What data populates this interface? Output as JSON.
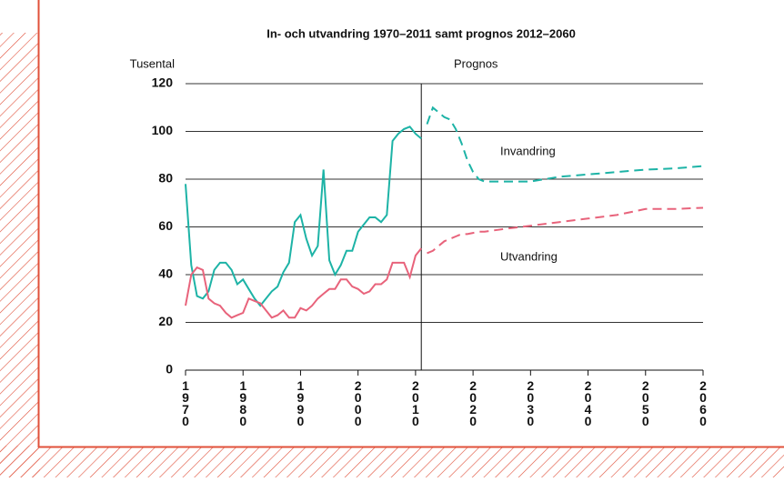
{
  "chart_data": {
    "type": "line",
    "title": "In- och utvandring 1970–2011 samt prognos 2012–2060",
    "y_label": "Tusental",
    "annotation": "Prognos",
    "forecast_from": 2011,
    "x": [
      1970,
      1971,
      1972,
      1973,
      1974,
      1975,
      1976,
      1977,
      1978,
      1979,
      1980,
      1981,
      1982,
      1983,
      1984,
      1985,
      1986,
      1987,
      1988,
      1989,
      1990,
      1991,
      1992,
      1993,
      1994,
      1995,
      1996,
      1997,
      1998,
      1999,
      2000,
      2001,
      2002,
      2003,
      2004,
      2005,
      2006,
      2007,
      2008,
      2009,
      2010,
      2011,
      2012,
      2013,
      2014,
      2015,
      2016,
      2017,
      2018,
      2019,
      2020,
      2021,
      2022,
      2025,
      2030,
      2035,
      2040,
      2045,
      2050,
      2055,
      2060
    ],
    "series": [
      {
        "name": "Invandring",
        "color": "#1db3a6",
        "values": [
          78,
          44,
          31,
          30,
          33,
          42,
          45,
          45,
          42,
          36,
          38,
          34,
          30,
          27,
          30,
          33,
          35,
          41,
          45,
          62,
          65,
          55,
          48,
          52,
          84,
          46,
          40,
          44,
          50,
          50,
          58,
          61,
          64,
          64,
          62,
          65,
          96,
          99,
          101,
          102,
          99,
          97,
          103,
          110,
          108,
          106,
          105,
          101,
          95,
          88,
          83,
          80,
          79,
          79,
          79,
          81,
          82,
          83,
          84,
          84.5,
          85.5
        ]
      },
      {
        "name": "Utvandring",
        "color": "#e8637b",
        "values": [
          27,
          40,
          43,
          42,
          30,
          28,
          27,
          24,
          22,
          23,
          24,
          30,
          29,
          28,
          25,
          22,
          23,
          25,
          22,
          22,
          26,
          25,
          27,
          30,
          32,
          34,
          34,
          38,
          38,
          35,
          34,
          32,
          33,
          36,
          36,
          38,
          45,
          45,
          45,
          39,
          48,
          51,
          49,
          50,
          52,
          54,
          55,
          56,
          57,
          57,
          57.5,
          58,
          58,
          59,
          60.5,
          62,
          63.5,
          65,
          67.5,
          67.5,
          68
        ]
      }
    ],
    "xlim": [
      1970,
      2060
    ],
    "xticks": [
      1970,
      1980,
      1990,
      2000,
      2010,
      2020,
      2030,
      2040,
      2050,
      2060
    ],
    "ylim": [
      0,
      120
    ],
    "yticks": [
      0,
      20,
      40,
      60,
      80,
      100,
      120
    ],
    "grid": true
  }
}
